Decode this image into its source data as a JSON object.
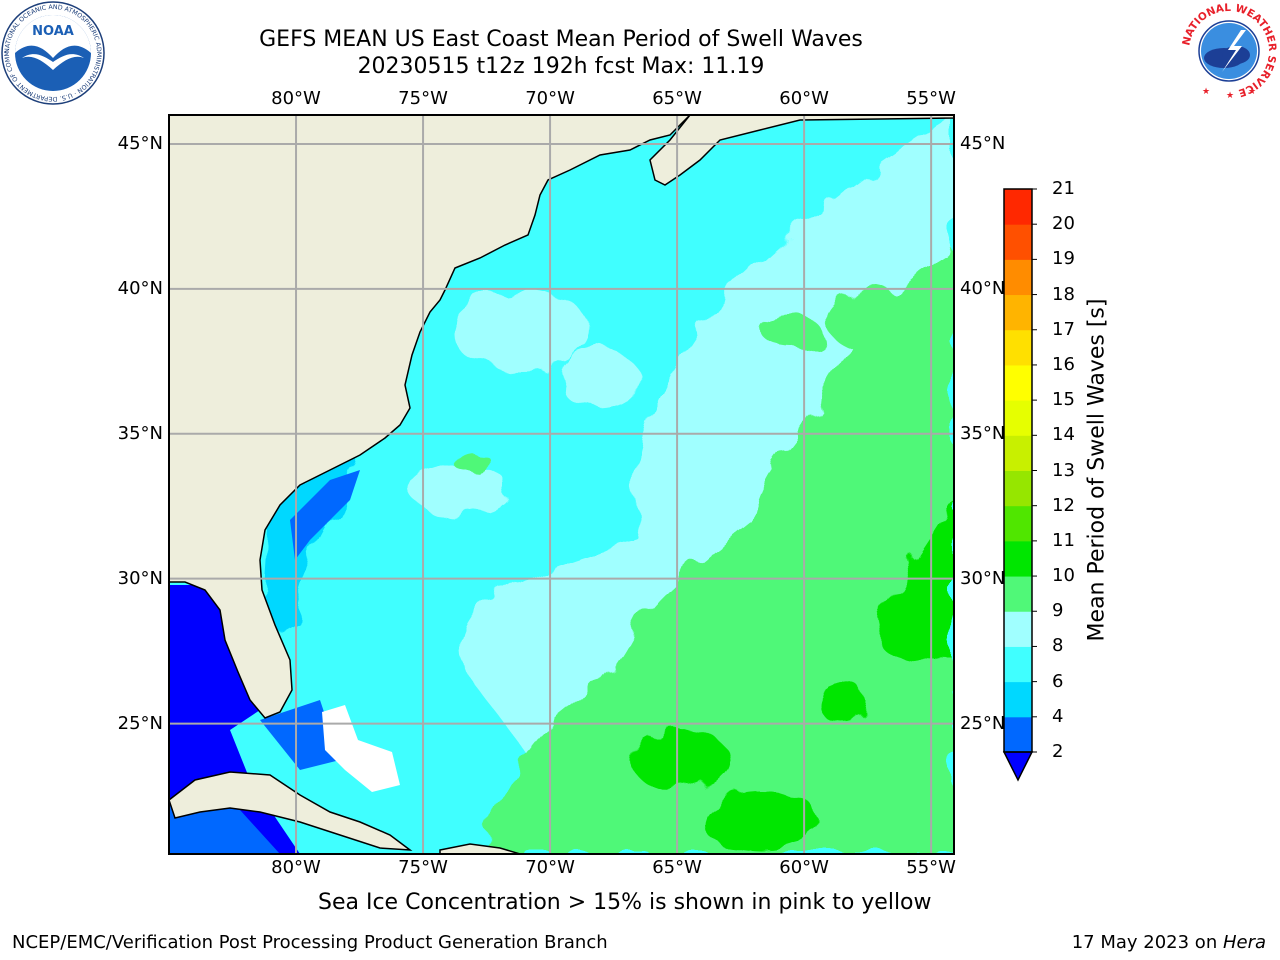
{
  "title": {
    "line1": "GEFS MEAN US East Coast Mean Period of Swell Waves",
    "line2": "20230515 t12z 192h fcst   Max: 11.19"
  },
  "map": {
    "lon_ticks": [
      "80°W",
      "75°W",
      "70°W",
      "65°W",
      "60°W",
      "55°W"
    ],
    "lat_ticks": [
      "45°N",
      "40°N",
      "35°N",
      "30°N",
      "25°N"
    ],
    "lon_range": [
      -85,
      -54.1
    ],
    "lat_range": [
      20.5,
      46
    ],
    "grid": true
  },
  "colorbar": {
    "label": "Mean Period of Swell Waves [s]",
    "ticks": [
      "2",
      "4",
      "6",
      "8",
      "9",
      "10",
      "11",
      "12",
      "13",
      "14",
      "15",
      "16",
      "17",
      "18",
      "19",
      "20",
      "21"
    ],
    "colors": [
      "#0068ff",
      "#00d8ff",
      "#40ffff",
      "#a0ffff",
      "#50f878",
      "#00e600",
      "#50e600",
      "#96e600",
      "#c8f000",
      "#e6ff00",
      "#ffff00",
      "#ffe000",
      "#ffb400",
      "#ff8c00",
      "#ff5000",
      "#ff2800",
      "#ff0000"
    ],
    "under_color": "#0000ff"
  },
  "caption": "Sea Ice Concentration > 15% is shown in pink to yellow",
  "footer": {
    "left": "NCEP/EMC/Verification Post Processing Product Generation Branch",
    "date": "17 May 2023 on ",
    "machine": "Hera"
  },
  "logos": {
    "noaa_text": "NOAA",
    "noaa_ring": "NATIONAL OCEANIC AND ATMOSPHERIC ADMINISTRATION · U.S. DEPARTMENT OF COMMERCE ·",
    "nws_ring": "NATIONAL WEATHER SERVICE"
  },
  "colors": {
    "land": "#eeeedc",
    "ocean_light": "#40ffff",
    "ocean_pale": "#a0ffff",
    "ocean_green": "#50f878",
    "ocean_bright_green": "#00e600",
    "ocean_blue": "#0068ff",
    "ocean_deep": "#0000ff",
    "grid": "#aaaaaa"
  }
}
